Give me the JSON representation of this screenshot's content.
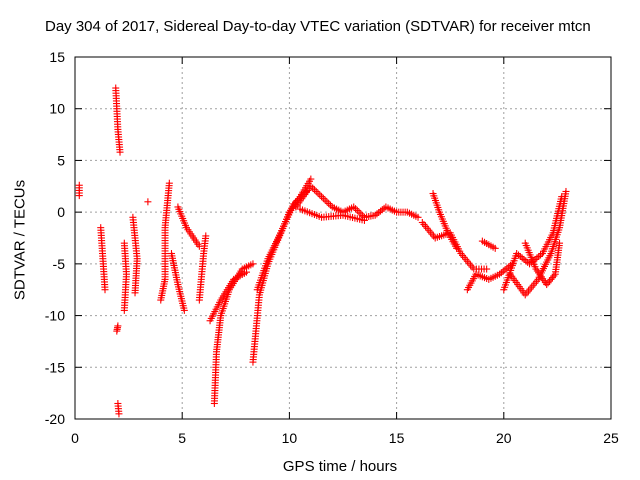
{
  "chart_data": {
    "type": "scatter",
    "title": "Day 304 of 2017, Sidereal Day-to-day VTEC variation (SDTVAR) for receiver mtcn",
    "xlabel": "GPS time / hours",
    "ylabel": "SDTVAR / TECUs",
    "xlim": [
      0,
      25
    ],
    "ylim": [
      -20,
      15
    ],
    "xticks": [
      0,
      5,
      10,
      15,
      20,
      25
    ],
    "yticks": [
      -20,
      -15,
      -10,
      -5,
      0,
      5,
      10,
      15
    ],
    "grid": true,
    "marker": "+",
    "color": "#ff0000",
    "series": [
      {
        "name": "SDTVAR",
        "segments": [
          [
            [
              0.2,
              1.6
            ],
            [
              0.2,
              2.6
            ]
          ],
          [
            [
              1.2,
              -1.5
            ],
            [
              1.3,
              -4.5
            ],
            [
              1.4,
              -7.5
            ]
          ],
          [
            [
              1.9,
              12
            ],
            [
              2.0,
              8
            ],
            [
              2.1,
              5.8
            ]
          ],
          [
            [
              1.95,
              -11.5
            ],
            [
              2.0,
              -11
            ]
          ],
          [
            [
              2.0,
              -18.5
            ],
            [
              2.05,
              -19.5
            ]
          ],
          [
            [
              2.3,
              -3
            ],
            [
              2.4,
              -6
            ],
            [
              2.3,
              -9.5
            ]
          ],
          [
            [
              2.7,
              -0.5
            ],
            [
              2.8,
              -2.5
            ],
            [
              2.9,
              -4.5
            ],
            [
              2.8,
              -7.8
            ]
          ],
          [
            [
              3.4,
              1.0
            ]
          ],
          [
            [
              4.0,
              -8.5
            ],
            [
              4.2,
              -6.5
            ],
            [
              4.2,
              -1.5
            ],
            [
              4.4,
              2.8
            ]
          ],
          [
            [
              4.5,
              -4
            ],
            [
              4.8,
              -7
            ],
            [
              5.1,
              -9.5
            ]
          ],
          [
            [
              4.8,
              0.5
            ],
            [
              5.2,
              -1.5
            ],
            [
              5.8,
              -3.3
            ]
          ],
          [
            [
              5.8,
              -8.5
            ],
            [
              6.0,
              -4
            ],
            [
              6.1,
              -2.3
            ]
          ],
          [
            [
              6.5,
              -18.5
            ],
            [
              6.6,
              -13.5
            ],
            [
              6.8,
              -10
            ],
            [
              7.2,
              -7.5
            ],
            [
              7.8,
              -5.5
            ],
            [
              8.3,
              -5
            ]
          ],
          [
            [
              6.3,
              -10.5
            ],
            [
              6.8,
              -8.5
            ],
            [
              7.4,
              -6.5
            ],
            [
              8.0,
              -5.8
            ]
          ],
          [
            [
              8.3,
              -14.5
            ],
            [
              8.6,
              -8
            ],
            [
              9.0,
              -5
            ],
            [
              9.5,
              -2.5
            ],
            [
              10.0,
              0
            ],
            [
              10.5,
              1.5
            ],
            [
              11.0,
              3.2
            ]
          ],
          [
            [
              8.5,
              -7.5
            ],
            [
              9.0,
              -4.5
            ],
            [
              9.6,
              -2
            ],
            [
              10.2,
              0.8
            ],
            [
              10.8,
              2
            ]
          ],
          [
            [
              10.3,
              0.5
            ],
            [
              11.0,
              2.5
            ],
            [
              11.5,
              1.5
            ],
            [
              12.0,
              0.5
            ],
            [
              12.5,
              0
            ],
            [
              13.0,
              0.5
            ],
            [
              13.5,
              -0.5
            ],
            [
              14.0,
              -0.3
            ],
            [
              14.5,
              0.5
            ],
            [
              15.0,
              0
            ],
            [
              15.5,
              0
            ],
            [
              16.0,
              -0.5
            ]
          ],
          [
            [
              10.5,
              0.3
            ],
            [
              11.5,
              -0.5
            ],
            [
              12.5,
              -0.3
            ],
            [
              13.5,
              -0.8
            ]
          ],
          [
            [
              16.2,
              -1
            ],
            [
              16.8,
              -2.5
            ],
            [
              17.5,
              -2
            ],
            [
              18.0,
              -4
            ],
            [
              18.6,
              -5.5
            ],
            [
              19.2,
              -5.5
            ]
          ],
          [
            [
              16.7,
              1.8
            ],
            [
              17.0,
              0
            ],
            [
              17.4,
              -2
            ],
            [
              17.8,
              -3.5
            ]
          ],
          [
            [
              18.3,
              -7.5
            ],
            [
              18.7,
              -6
            ],
            [
              19.3,
              -6.5
            ],
            [
              19.8,
              -6
            ],
            [
              20.4,
              -5
            ]
          ],
          [
            [
              19.0,
              -2.8
            ],
            [
              19.6,
              -3.5
            ]
          ],
          [
            [
              20.0,
              -7.5
            ],
            [
              20.6,
              -4
            ],
            [
              21.2,
              -5
            ],
            [
              21.8,
              -4
            ],
            [
              22.3,
              -2
            ],
            [
              22.7,
              1.5
            ]
          ],
          [
            [
              20.3,
              -6
            ],
            [
              21.0,
              -8
            ],
            [
              21.6,
              -6.5
            ],
            [
              22.2,
              -4
            ],
            [
              22.6,
              -1.5
            ],
            [
              22.9,
              2
            ]
          ],
          [
            [
              21.0,
              -3
            ],
            [
              21.5,
              -5.5
            ],
            [
              22.0,
              -7
            ],
            [
              22.4,
              -6
            ],
            [
              22.6,
              -3
            ]
          ]
        ]
      }
    ]
  }
}
